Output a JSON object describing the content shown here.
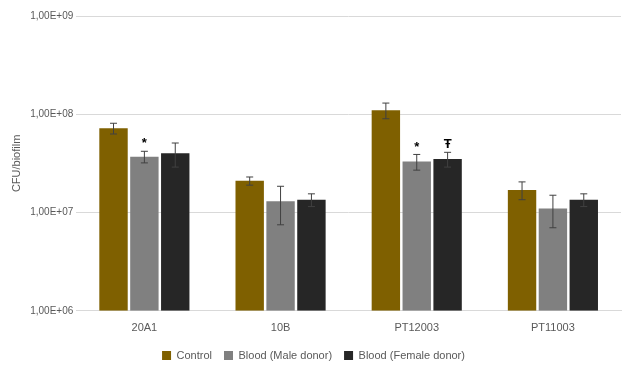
{
  "chart_data": {
    "type": "bar",
    "y_label": "CFU/biofilm",
    "categories": [
      "20A1",
      "10B",
      "PT12003",
      "PT11003"
    ],
    "series": [
      {
        "name": "Control",
        "color": "#7f6000",
        "values": [
          72000000,
          21000000,
          110000000,
          17000000
        ],
        "errors": [
          9000000,
          2000000,
          20000000,
          3500000
        ]
      },
      {
        "name": "Blood (Male donor)",
        "color": "#808080",
        "values": [
          37000000,
          13000000,
          33000000,
          11000000
        ],
        "errors": [
          5000000,
          5500000,
          6000000,
          4000000
        ]
      },
      {
        "name": "Blood (Female donor)",
        "color": "#262626",
        "values": [
          40000000,
          13500000,
          35000000,
          13500000
        ],
        "errors": [
          11000000,
          2000000,
          6000000,
          2000000
        ]
      }
    ],
    "annotations": [
      {
        "text": "*",
        "category": "20A1",
        "series": "Blood (Male donor)"
      },
      {
        "text": "*",
        "category": "PT12003",
        "series": "Blood (Male donor)"
      },
      {
        "text": "Ŧ",
        "category": "PT12003",
        "series": "Blood (Female donor)"
      }
    ],
    "log": "y",
    "ylim": [
      1000000,
      1000000000
    ],
    "yticks": [
      {
        "value": 1000000,
        "label": "1,00E+06"
      },
      {
        "value": 10000000,
        "label": "1,00E+07"
      },
      {
        "value": 100000000,
        "label": "1,00E+08"
      },
      {
        "value": 1000000000,
        "label": "1,00E+09"
      }
    ],
    "grid": true,
    "legend": "bottom"
  }
}
